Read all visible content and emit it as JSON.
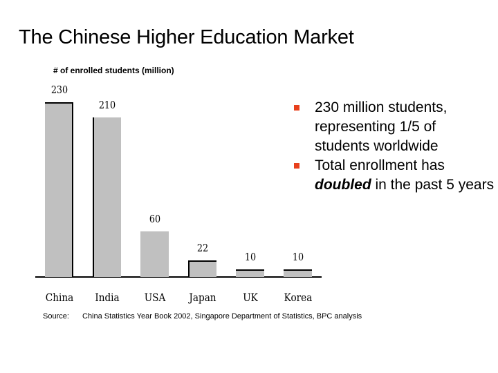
{
  "slide": {
    "title": "The Chinese Higher Education Market",
    "ylabel": "# of enrolled students (million)",
    "bullets": [
      {
        "text_parts": [
          "230 million students, representing 1/5 of students worldwide"
        ]
      },
      {
        "text_before": "Total enrollment has ",
        "emphasis": "doubled",
        "text_after": " in the past 5 years"
      }
    ],
    "bullet_color": "#e8401c",
    "source_label": "Source:",
    "source_text": "China Statistics Year Book 2002, Singapore Department of Statistics, BPC analysis"
  },
  "chart_data": {
    "type": "bar",
    "title": "# of enrolled students (million)",
    "xlabel": "",
    "ylabel": "# of enrolled students (million)",
    "categories": [
      "China",
      "India",
      "USA",
      "Japan",
      "UK",
      "Korea"
    ],
    "values": [
      230,
      210,
      60,
      22,
      10,
      10
    ],
    "value_labels": [
      "230",
      "210",
      "60",
      "22",
      "10",
      "10"
    ],
    "ylim": [
      0,
      230
    ],
    "grid": false,
    "legend": null,
    "bar_color": "#c0c0c0"
  }
}
